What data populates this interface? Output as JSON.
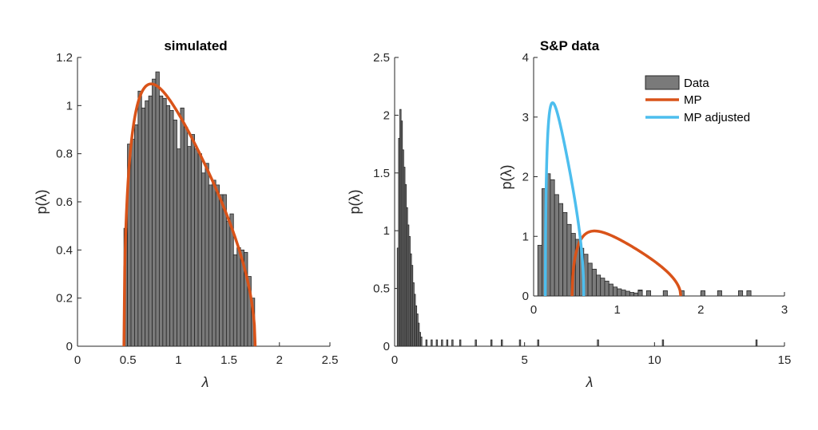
{
  "colors": {
    "bar_fill": "#7a7a7a",
    "bar_edge": "#262626",
    "mp": "#d95319",
    "mp_adjusted": "#4dbeee",
    "axis": "#262626"
  },
  "chart_data": [
    {
      "type": "bar",
      "title": "simulated",
      "xlabel": "λ",
      "ylabel": "p(λ)",
      "xlim": [
        0,
        2.5
      ],
      "ylim": [
        0,
        1.2
      ],
      "xticks": [
        "0",
        "0.5",
        "1",
        "1.5",
        "2",
        "2.5"
      ],
      "yticks": [
        "0",
        "0.2",
        "0.4",
        "0.6",
        "0.8",
        "1",
        "1.2"
      ],
      "bin_start": 0.46,
      "bin_width": 0.035,
      "values": [
        0.49,
        0.84,
        0.86,
        0.92,
        1.06,
        0.99,
        1.02,
        1.04,
        1.11,
        1.14,
        1.04,
        1.03,
        1.0,
        0.98,
        0.94,
        0.82,
        0.99,
        0.91,
        0.83,
        0.88,
        0.82,
        0.8,
        0.72,
        0.76,
        0.67,
        0.69,
        0.67,
        0.63,
        0.63,
        0.52,
        0.55,
        0.38,
        0.41,
        0.4,
        0.39,
        0.29,
        0.2
      ],
      "series": [
        {
          "name": "MP",
          "lambda_min": 0.46,
          "lambda_max": 1.76
        }
      ]
    },
    {
      "type": "bar",
      "title": "",
      "xlabel": "λ",
      "ylabel": "p(λ)",
      "xlim": [
        0,
        15
      ],
      "ylim": [
        0,
        2.5
      ],
      "xticks": [
        "0",
        "5",
        "10",
        "15"
      ],
      "yticks": [
        "0",
        "0.5",
        "1",
        "1.5",
        "2",
        "2.5"
      ],
      "bin_start": 0.1,
      "bin_width": 0.05,
      "values": [
        0.85,
        1.8,
        2.05,
        1.95,
        1.7,
        1.55,
        1.4,
        1.2,
        1.05,
        0.95,
        0.8,
        0.7,
        0.55,
        0.45,
        0.35,
        0.28,
        0.2,
        0.12,
        0.08
      ],
      "outliers": [
        1.2,
        1.4,
        1.6,
        1.8,
        2.0,
        2.2,
        2.5,
        3.1,
        3.7,
        4.1,
        4.8,
        5.5,
        7.8,
        10.3,
        13.9
      ]
    },
    {
      "type": "bar",
      "title": "S&P data",
      "xlabel": "",
      "ylabel": "p(λ)",
      "xlim": [
        0,
        3
      ],
      "ylim": [
        0,
        4
      ],
      "xticks": [
        "0",
        "1",
        "2",
        "3"
      ],
      "yticks": [
        "0",
        "1",
        "2",
        "3",
        "4"
      ],
      "bin_start": 0.05,
      "bin_width": 0.05,
      "values": [
        0.85,
        1.8,
        2.05,
        1.95,
        1.7,
        1.55,
        1.4,
        1.2,
        1.05,
        0.95,
        0.8,
        0.7,
        0.55,
        0.45,
        0.35,
        0.3,
        0.25,
        0.2,
        0.15,
        0.12,
        0.1,
        0.08,
        0.06,
        0.05,
        0.1
      ],
      "outliers": [
        1.25,
        1.35,
        1.55,
        1.75,
        2.0,
        2.2,
        2.45,
        2.55
      ],
      "series": [
        {
          "name": "Data"
        },
        {
          "name": "MP",
          "lambda_min": 0.46,
          "lambda_max": 1.76
        },
        {
          "name": "MP adjusted",
          "lambda_min": 0.14,
          "lambda_max": 0.6,
          "peak": 3.24
        }
      ],
      "legend": "top-right"
    }
  ]
}
